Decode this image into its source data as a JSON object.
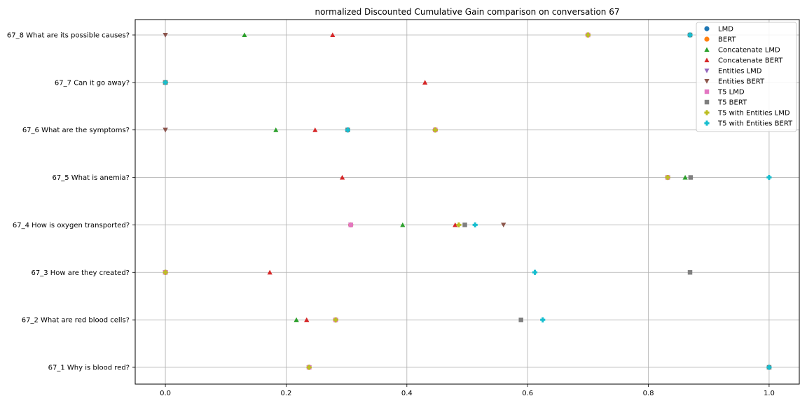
{
  "chart_data": {
    "type": "scatter",
    "title": "normalized Discounted Cumulative Gain comparison on conversation 67",
    "xlabel": "",
    "ylabel": "",
    "xlim": [
      -0.05,
      1.05
    ],
    "x_ticks": [
      "0.0",
      "0.2",
      "0.4",
      "0.6",
      "0.8",
      "1.0"
    ],
    "x_tick_values": [
      0.0,
      0.2,
      0.4,
      0.6,
      0.8,
      1.0
    ],
    "categories": [
      "67_1 Why is blood red?",
      "67_2 What are red blood cells?",
      "67_3 How are they created?",
      "67_4 How is oxygen transported?",
      "67_5 What is anemia?",
      "67_6 What are the symptoms?",
      "67_7 Can it go away?",
      "67_8 What are its possible causes?"
    ],
    "grid": true,
    "legend_position": "top-right",
    "series": [
      {
        "name": "LMD",
        "marker": "circle",
        "color": "#1f77b4",
        "values": [
          0.238,
          0.282,
          0.0,
          0.307,
          0.832,
          0.447,
          0.0,
          0.7
        ]
      },
      {
        "name": "BERT",
        "marker": "circle",
        "color": "#ff7f0e",
        "values": [
          0.238,
          0.282,
          0.0,
          0.307,
          0.832,
          0.447,
          0.0,
          0.7
        ]
      },
      {
        "name": "Concatenate LMD",
        "marker": "triangle-up",
        "color": "#2ca02c",
        "values": [
          1.0,
          0.217,
          0.0,
          0.393,
          0.861,
          0.183,
          0.0,
          0.131
        ]
      },
      {
        "name": "Concatenate BERT",
        "marker": "triangle-up",
        "color": "#d62728",
        "values": [
          0.238,
          0.234,
          0.173,
          0.48,
          0.293,
          0.248,
          0.43,
          0.277
        ]
      },
      {
        "name": "Entities LMD",
        "marker": "triangle-down",
        "color": "#9467bd",
        "values": [
          0.238,
          0.282,
          0.0,
          0.307,
          0.832,
          0.0,
          0.0,
          0.0
        ]
      },
      {
        "name": "Entities BERT",
        "marker": "triangle-down",
        "color": "#8c564b",
        "values": [
          0.238,
          0.282,
          0.0,
          0.56,
          0.832,
          0.0,
          0.0,
          0.0
        ]
      },
      {
        "name": "T5 LMD",
        "marker": "square",
        "color": "#e377c2",
        "values": [
          0.238,
          0.282,
          0.0,
          0.307,
          0.832,
          0.447,
          0.0,
          0.7
        ]
      },
      {
        "name": "T5 BERT",
        "marker": "square",
        "color": "#7f7f7f",
        "values": [
          1.0,
          0.589,
          0.869,
          0.496,
          0.87,
          0.302,
          0.0,
          0.869
        ]
      },
      {
        "name": "T5 with Entities LMD",
        "marker": "plus",
        "color": "#bcbd22",
        "values": [
          0.238,
          0.282,
          0.0,
          0.486,
          0.832,
          0.447,
          0.0,
          0.7
        ]
      },
      {
        "name": "T5 with Entities BERT",
        "marker": "plus",
        "color": "#17becf",
        "values": [
          1.0,
          0.625,
          0.612,
          0.513,
          1.0,
          0.302,
          0.0,
          0.869
        ]
      }
    ]
  }
}
